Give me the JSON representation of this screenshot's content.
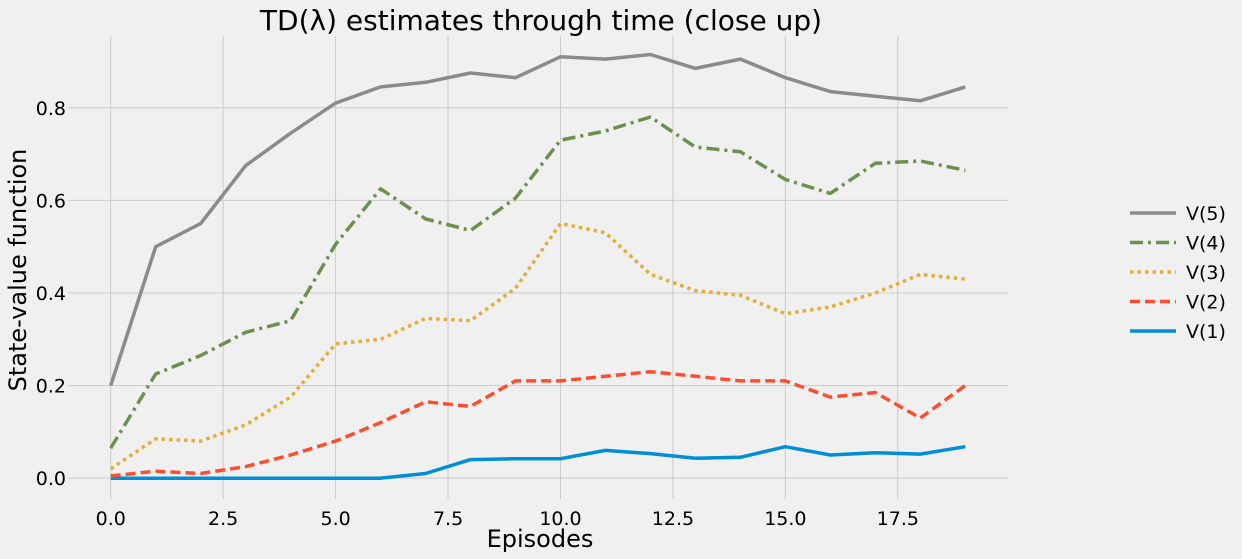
{
  "chart_data": {
    "type": "line",
    "title": "TD(λ) estimates through time (close up)",
    "xlabel": "Episodes",
    "ylabel": "State-value function",
    "xlim": [
      -0.95,
      19.95
    ],
    "ylim": [
      -0.045,
      0.955
    ],
    "xticks": [
      0.0,
      2.5,
      5.0,
      7.5,
      10.0,
      12.5,
      15.0,
      17.5
    ],
    "xtick_labels": [
      "0.0",
      "2.5",
      "5.0",
      "7.5",
      "10.0",
      "12.5",
      "15.0",
      "17.5"
    ],
    "yticks": [
      0.0,
      0.2,
      0.4,
      0.6,
      0.8
    ],
    "ytick_labels": [
      "0.0",
      "0.2",
      "0.4",
      "0.6",
      "0.8"
    ],
    "grid": true,
    "legend_position": "right",
    "x": [
      0,
      1,
      2,
      3,
      4,
      5,
      6,
      7,
      8,
      9,
      10,
      11,
      12,
      13,
      14,
      15,
      16,
      17,
      18,
      19
    ],
    "series": [
      {
        "name": "V(5)",
        "color": "#8b8b8b",
        "dash": "solid",
        "values": [
          0.2,
          0.5,
          0.55,
          0.675,
          0.745,
          0.81,
          0.845,
          0.855,
          0.875,
          0.865,
          0.91,
          0.905,
          0.915,
          0.885,
          0.905,
          0.865,
          0.835,
          0.825,
          0.815,
          0.845
        ]
      },
      {
        "name": "V(4)",
        "color": "#6d904f",
        "dash": "dashdot",
        "values": [
          0.065,
          0.225,
          0.265,
          0.315,
          0.34,
          0.505,
          0.625,
          0.56,
          0.535,
          0.605,
          0.73,
          0.75,
          0.78,
          0.715,
          0.705,
          0.645,
          0.615,
          0.68,
          0.685,
          0.665
        ]
      },
      {
        "name": "V(3)",
        "color": "#e5ae38",
        "dash": "dotted",
        "values": [
          0.02,
          0.085,
          0.08,
          0.115,
          0.175,
          0.29,
          0.3,
          0.345,
          0.34,
          0.41,
          0.55,
          0.53,
          0.44,
          0.405,
          0.395,
          0.355,
          0.37,
          0.4,
          0.44,
          0.43
        ]
      },
      {
        "name": "V(2)",
        "color": "#fc4f30",
        "dash": "dashed",
        "values": [
          0.005,
          0.015,
          0.01,
          0.025,
          0.05,
          0.08,
          0.12,
          0.165,
          0.155,
          0.21,
          0.21,
          0.22,
          0.23,
          0.22,
          0.21,
          0.21,
          0.175,
          0.185,
          0.13,
          0.2
        ]
      },
      {
        "name": "V(1)",
        "color": "#008fd5",
        "dash": "solid",
        "values": [
          0.0,
          0.0,
          0.0,
          0.0,
          0.0,
          0.0,
          0.0,
          0.01,
          0.04,
          0.042,
          0.042,
          0.06,
          0.053,
          0.043,
          0.045,
          0.068,
          0.05,
          0.055,
          0.052,
          0.068
        ]
      }
    ]
  }
}
